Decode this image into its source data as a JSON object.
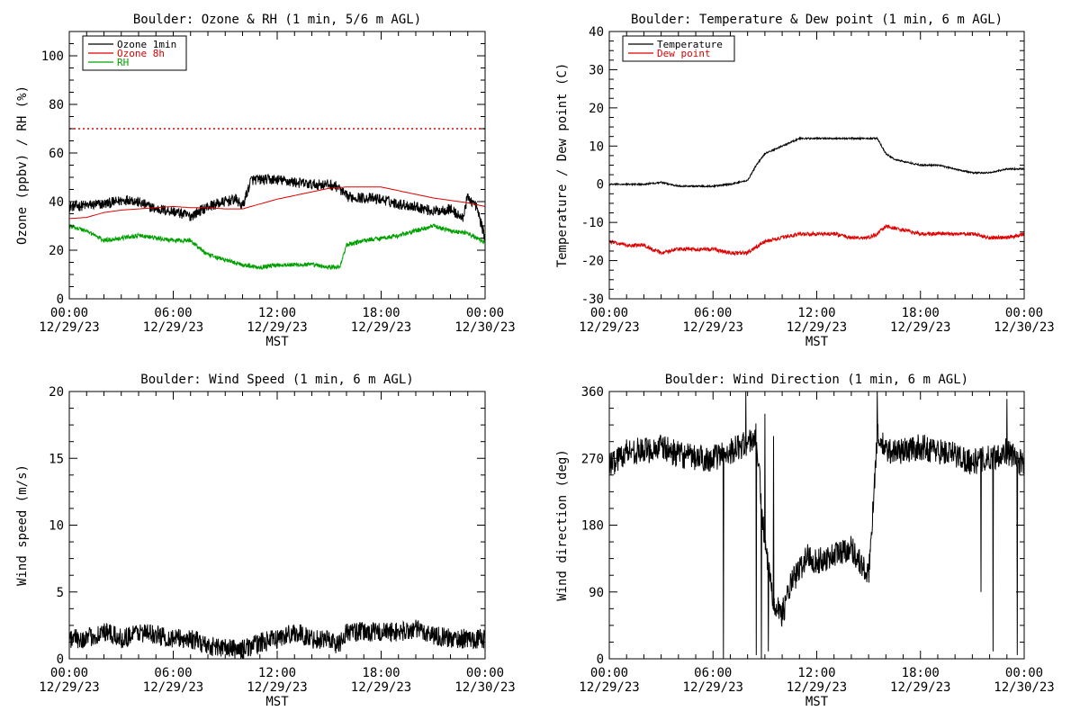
{
  "page": {
    "background": "#ffffff"
  },
  "colors": {
    "axis": "#000000",
    "ozone_1min": "#000000",
    "ozone_8h": "#e00000",
    "rh": "#00a000",
    "temperature": "#000000",
    "dew_point": "#e00000",
    "wind_speed": "#000000",
    "wind_direction": "#000000",
    "threshold": "#e00000"
  },
  "chart_data": [
    {
      "type": "line",
      "title": "Boulder: Ozone & RH (1 min, 5/6 m AGL)",
      "xlabel": "MST",
      "ylabel": "Ozone (ppbv) / RH (%)",
      "xlim": [
        "00:00 12/29/23",
        "00:00 12/30/23"
      ],
      "xtick_labels": [
        [
          "00:00",
          "12/29/23"
        ],
        [
          "06:00",
          "12/29/23"
        ],
        [
          "12:00",
          "12/29/23"
        ],
        [
          "18:00",
          "12/29/23"
        ],
        [
          "00:00",
          "12/30/23"
        ]
      ],
      "ylim": [
        0,
        110
      ],
      "yticks": [
        0,
        20,
        40,
        60,
        80,
        100
      ],
      "grid": false,
      "legend": {
        "position": "top-left",
        "entries": [
          {
            "name": "Ozone 1min",
            "color": "#000000"
          },
          {
            "name": "Ozone 8h",
            "color": "#e00000"
          },
          {
            "name": "RH",
            "color": "#00a000"
          }
        ]
      },
      "reference_lines": [
        {
          "y": 70,
          "color": "#e00000",
          "style": "dotted"
        }
      ],
      "series": [
        {
          "name": "Ozone 1min",
          "color": "#000000",
          "noise": 2.2,
          "x_hours": [
            0,
            2,
            3.5,
            5,
            6,
            7,
            8,
            9,
            9.6,
            10,
            10.5,
            12,
            13,
            14,
            15,
            15.5,
            16,
            18,
            19,
            20,
            21,
            22,
            22.7,
            23,
            23.5,
            24
          ],
          "y": [
            38,
            39,
            41,
            37,
            36,
            34,
            38,
            40,
            41,
            38,
            49,
            49,
            48,
            47,
            47,
            46,
            42,
            41,
            39,
            38,
            36,
            37,
            33,
            42,
            38,
            25
          ]
        },
        {
          "name": "Ozone 8h",
          "color": "#e00000",
          "noise": 0,
          "x_hours": [
            0,
            1,
            2,
            3,
            4,
            5,
            6,
            7,
            8,
            9,
            10,
            11,
            12,
            13,
            14,
            15,
            16,
            17,
            18,
            19,
            20,
            21,
            22,
            23,
            24
          ],
          "y": [
            33,
            33.5,
            35.5,
            36.5,
            37,
            37.5,
            38,
            37.5,
            37.5,
            37,
            37,
            39,
            41,
            42.5,
            44,
            45.5,
            46,
            46,
            46,
            44.5,
            43,
            41.5,
            40.5,
            39.5,
            38
          ]
        },
        {
          "name": "RH",
          "color": "#00a000",
          "noise": 0.9,
          "x_hours": [
            0,
            1,
            2,
            3,
            4,
            5,
            6,
            7,
            8,
            9,
            10,
            11,
            12,
            13,
            14,
            15,
            15.6,
            16,
            17,
            18,
            19,
            20,
            21,
            22,
            23,
            24
          ],
          "y": [
            30,
            28,
            24,
            25,
            26,
            25,
            24,
            24,
            18,
            16,
            14,
            13,
            14,
            14,
            14,
            13,
            13,
            22,
            24,
            25,
            26,
            28,
            30,
            28,
            27,
            23
          ]
        }
      ]
    },
    {
      "type": "line",
      "title": "Boulder: Temperature & Dew point (1 min, 6 m AGL)",
      "xlabel": "MST",
      "ylabel": "Temperature / Dew point (C)",
      "xlim": [
        "00:00 12/29/23",
        "00:00 12/30/23"
      ],
      "xtick_labels": [
        [
          "00:00",
          "12/29/23"
        ],
        [
          "06:00",
          "12/29/23"
        ],
        [
          "12:00",
          "12/29/23"
        ],
        [
          "18:00",
          "12/29/23"
        ],
        [
          "00:00",
          "12/30/23"
        ]
      ],
      "ylim": [
        -30,
        40
      ],
      "yticks": [
        -30,
        -20,
        -10,
        0,
        10,
        20,
        30,
        40
      ],
      "grid": false,
      "legend": {
        "position": "top-left",
        "entries": [
          {
            "name": "Temperature",
            "color": "#000000"
          },
          {
            "name": "Dew point",
            "color": "#e00000"
          }
        ]
      },
      "series": [
        {
          "name": "Temperature",
          "color": "#000000",
          "noise": 0.2,
          "x_hours": [
            0,
            1,
            2,
            3,
            4,
            5,
            6,
            7,
            8,
            8.5,
            9,
            10,
            11,
            12,
            13,
            14,
            15,
            15.5,
            16,
            16.5,
            17,
            18,
            19,
            20,
            21,
            22,
            23,
            24
          ],
          "y": [
            0,
            0,
            0,
            0.5,
            -0.5,
            -0.5,
            -0.5,
            0,
            1,
            5,
            8,
            10,
            12,
            12,
            12,
            12,
            12,
            12,
            8,
            6.5,
            6,
            5,
            5,
            4,
            3,
            3,
            4,
            4
          ]
        },
        {
          "name": "Dew point",
          "color": "#e00000",
          "noise": 0.5,
          "x_hours": [
            0,
            1,
            2,
            3,
            4,
            5,
            6,
            7,
            8,
            9,
            10,
            11,
            12,
            13,
            14,
            15,
            15.5,
            16,
            17,
            18,
            19,
            20,
            21,
            22,
            23,
            24
          ],
          "y": [
            -15,
            -16,
            -16,
            -18,
            -17,
            -17,
            -17,
            -18,
            -18,
            -15,
            -14,
            -13,
            -13,
            -13,
            -14,
            -14,
            -13,
            -11,
            -12,
            -13,
            -13,
            -13,
            -13,
            -14,
            -14,
            -13
          ]
        }
      ]
    },
    {
      "type": "line",
      "title": "Boulder: Wind Speed (1 min, 6 m AGL)",
      "xlabel": "MST",
      "ylabel": "Wind speed (m/s)",
      "xlim": [
        "00:00 12/29/23",
        "00:00 12/30/23"
      ],
      "xtick_labels": [
        [
          "00:00",
          "12/29/23"
        ],
        [
          "06:00",
          "12/29/23"
        ],
        [
          "12:00",
          "12/29/23"
        ],
        [
          "18:00",
          "12/29/23"
        ],
        [
          "00:00",
          "12/30/23"
        ]
      ],
      "ylim": [
        0,
        20
      ],
      "yticks": [
        0,
        5,
        10,
        15,
        20
      ],
      "grid": false,
      "series": [
        {
          "name": "",
          "color": "#000000",
          "noise": 0.75,
          "x_hours": [
            0,
            1,
            2,
            3,
            4,
            5,
            6,
            7,
            8,
            9,
            10,
            11,
            12,
            13,
            14,
            15,
            15.5,
            16,
            17,
            18,
            19,
            20,
            21,
            22,
            23,
            24
          ],
          "y": [
            1.5,
            1.5,
            2,
            1.5,
            2,
            1.8,
            1.5,
            1.5,
            1,
            0.8,
            0.7,
            1.2,
            1.5,
            2,
            1.5,
            1.5,
            1,
            2,
            2,
            2,
            2,
            2.2,
            1.8,
            1.5,
            1.5,
            1.5
          ]
        }
      ]
    },
    {
      "type": "line",
      "title": "Boulder: Wind Direction (1 min, 6 m AGL)",
      "xlabel": "MST",
      "ylabel": "Wind direction (deg)",
      "xlim": [
        "00:00 12/29/23",
        "00:00 12/30/23"
      ],
      "xtick_labels": [
        [
          "00:00",
          "12/29/23"
        ],
        [
          "06:00",
          "12/29/23"
        ],
        [
          "12:00",
          "12/29/23"
        ],
        [
          "18:00",
          "12/29/23"
        ],
        [
          "00:00",
          "12/30/23"
        ]
      ],
      "ylim": [
        0,
        360
      ],
      "yticks": [
        0,
        90,
        180,
        270,
        360
      ],
      "grid": false,
      "series": [
        {
          "name": "",
          "color": "#000000",
          "noise": 18,
          "spikes": [
            [
              6.6,
              0
            ],
            [
              7.9,
              360
            ],
            [
              8.5,
              5
            ],
            [
              8.8,
              0
            ],
            [
              9.0,
              330
            ],
            [
              9.2,
              10
            ],
            [
              9.5,
              300
            ],
            [
              15.5,
              360
            ],
            [
              21.5,
              90
            ],
            [
              22.2,
              10
            ],
            [
              23.0,
              350
            ],
            [
              23.6,
              5
            ]
          ],
          "x_hours": [
            0,
            1,
            2,
            3,
            4,
            5,
            6,
            7,
            8,
            8.5,
            9,
            9.5,
            10,
            10.5,
            11,
            11.5,
            12,
            13,
            14,
            15,
            15.5,
            16,
            17,
            18,
            19,
            20,
            21,
            22,
            23,
            24
          ],
          "y": [
            260,
            280,
            280,
            285,
            275,
            270,
            270,
            280,
            290,
            300,
            150,
            80,
            60,
            100,
            120,
            140,
            130,
            140,
            150,
            110,
            300,
            280,
            280,
            285,
            280,
            275,
            265,
            270,
            280,
            260
          ]
        }
      ]
    }
  ]
}
